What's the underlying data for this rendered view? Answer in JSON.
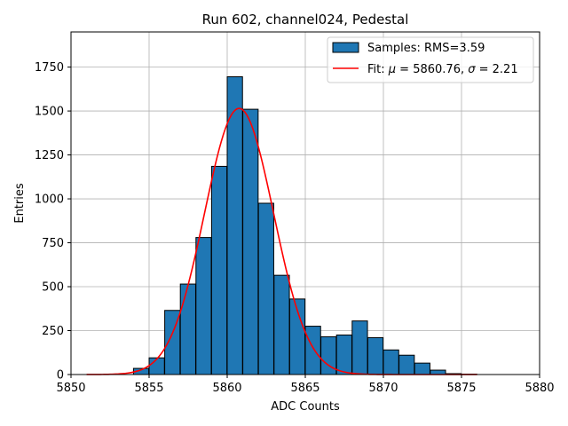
{
  "chart_data": {
    "type": "bar",
    "title": "Run 602, channel024, Pedestal",
    "xlabel": "ADC Counts",
    "ylabel": "Entries",
    "xlim": [
      5850,
      5880
    ],
    "ylim": [
      0,
      1950
    ],
    "xticks": [
      5850,
      5855,
      5860,
      5865,
      5870,
      5875,
      5880
    ],
    "xtick_labels": [
      "5850",
      "5855",
      "5860",
      "5865",
      "5870",
      "5875",
      "5880"
    ],
    "yticks": [
      0,
      250,
      500,
      750,
      1000,
      1250,
      1500,
      1750
    ],
    "ytick_labels": [
      "0",
      "250",
      "500",
      "750",
      "1000",
      "1250",
      "1500",
      "1750"
    ],
    "grid": true,
    "legend_position": "top-right",
    "bin_width": 0.98,
    "series": [
      {
        "name": "Samples: RMS=3.59",
        "kind": "histogram",
        "color": "#1f77b4",
        "edge_color": "#000000",
        "bin_starts": [
          5854.0,
          5855.0,
          5856.0,
          5857.0,
          5858.0,
          5859.0,
          5860.0,
          5861.0,
          5862.0,
          5863.0,
          5864.0,
          5865.0,
          5866.0,
          5867.0,
          5868.0,
          5869.0,
          5870.0,
          5871.0,
          5872.0,
          5873.0,
          5874.0,
          5875.0
        ],
        "values": [
          35,
          95,
          365,
          515,
          780,
          1185,
          1695,
          1510,
          975,
          565,
          430,
          275,
          215,
          225,
          305,
          210,
          140,
          110,
          65,
          25,
          5,
          2
        ]
      },
      {
        "name": "Fit: μ = 5860.76, σ = 2.21",
        "legend_prefix": "Fit: ",
        "legend_mu_part": " = 5860.76, ",
        "legend_sigma_part": " = 2.21",
        "kind": "gaussian",
        "color": "#ff0000",
        "mu": 5860.76,
        "sigma": 2.21,
        "amplitude": 1515,
        "x_range": [
          5851,
          5876
        ]
      }
    ]
  }
}
